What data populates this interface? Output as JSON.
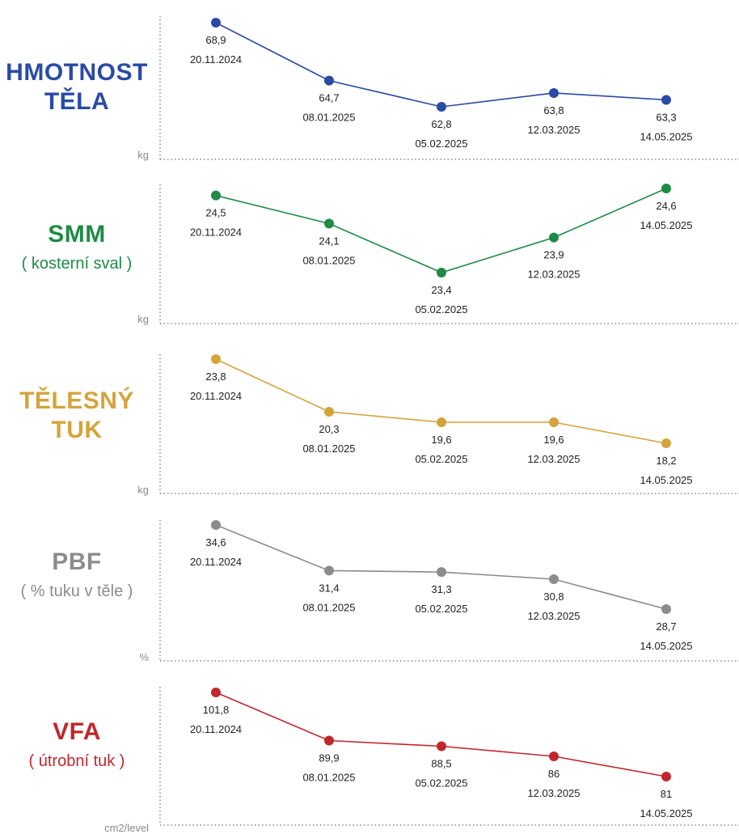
{
  "dates": [
    "20.11.2024",
    "08.01.2025",
    "05.02.2025",
    "12.03.2025",
    "14.05.2025"
  ],
  "chart_data": [
    {
      "type": "line",
      "title": "HMOTNOST\nTĚLA",
      "subtitle": "",
      "ylabel": "kg",
      "color": "#2a4aa6",
      "x": [
        "20.11.2024",
        "08.01.2025",
        "05.02.2025",
        "12.03.2025",
        "14.05.2025"
      ],
      "values": [
        68.9,
        64.7,
        62.8,
        63.8,
        63.3
      ],
      "labels": [
        "68,9",
        "64,7",
        "62,8",
        "63,8",
        "63,3"
      ]
    },
    {
      "type": "line",
      "title": "SMM",
      "subtitle": "( kosterní sval )",
      "ylabel": "kg",
      "color": "#1f8a45",
      "x": [
        "20.11.2024",
        "08.01.2025",
        "05.02.2025",
        "12.03.2025",
        "14.05.2025"
      ],
      "values": [
        24.5,
        24.1,
        23.4,
        23.9,
        24.6
      ],
      "labels": [
        "24,5",
        "24,1",
        "23,4",
        "23,9",
        "24,6"
      ]
    },
    {
      "type": "line",
      "title": "TĚLESNÝ\nTUK",
      "subtitle": "",
      "ylabel": "kg",
      "color": "#d4a43a",
      "x": [
        "20.11.2024",
        "08.01.2025",
        "05.02.2025",
        "12.03.2025",
        "14.05.2025"
      ],
      "values": [
        23.8,
        20.3,
        19.6,
        19.6,
        18.2
      ],
      "labels": [
        "23,8",
        "20,3",
        "19,6",
        "19,6",
        "18,2"
      ]
    },
    {
      "type": "line",
      "title": "PBF",
      "subtitle": "( % tuku v těle )",
      "ylabel": "%",
      "color": "#8c8c8c",
      "x": [
        "20.11.2024",
        "08.01.2025",
        "05.02.2025",
        "12.03.2025",
        "14.05.2025"
      ],
      "values": [
        34.6,
        31.4,
        31.3,
        30.8,
        28.7
      ],
      "labels": [
        "34,6",
        "31,4",
        "31,3",
        "30,8",
        "28,7"
      ]
    },
    {
      "type": "line",
      "title": "VFA",
      "subtitle": "( útrobní tuk )",
      "ylabel": "cm2/level",
      "color": "#c0272d",
      "x": [
        "20.11.2024",
        "08.01.2025",
        "05.02.2025",
        "12.03.2025",
        "14.05.2025"
      ],
      "values": [
        101.8,
        89.9,
        88.5,
        86,
        81
      ],
      "labels": [
        "101,8",
        "89,9",
        "88,5",
        "86",
        "81"
      ]
    }
  ]
}
